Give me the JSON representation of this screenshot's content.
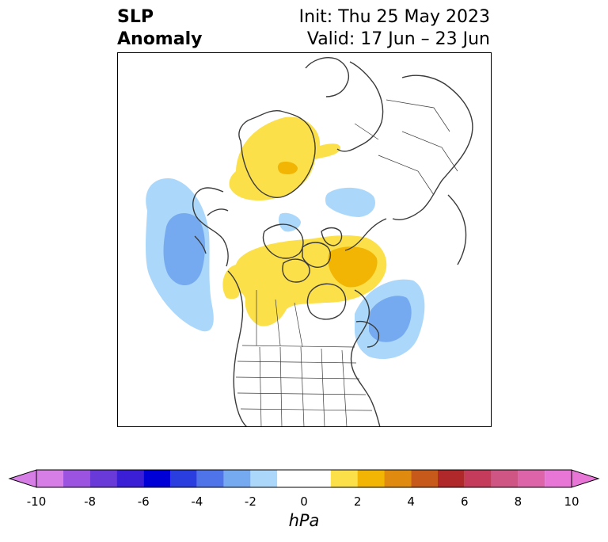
{
  "header": {
    "field_line1": "SLP",
    "field_line2": "Anomaly",
    "init_line": "Init: Thu 25 May 2023",
    "valid_line": "Valid: 17 Jun – 23 Jun"
  },
  "colorbar": {
    "units": "hPa",
    "tick_labels": [
      "-10",
      "-8",
      "-6",
      "-4",
      "-2",
      "0",
      "2",
      "4",
      "6",
      "8",
      "10"
    ],
    "levels": [
      -10,
      -9,
      -8,
      -7,
      -6,
      -5,
      -4,
      -3,
      -2,
      -1,
      1,
      2,
      3,
      4,
      5,
      6,
      7,
      8,
      9,
      10
    ],
    "colors": [
      "#d67ee6",
      "#9c53e0",
      "#6a3ad8",
      "#3b1fd6",
      "#0000d6",
      "#2a3ee0",
      "#4f73e8",
      "#76aaf0",
      "#abd8fa",
      "#ffffff",
      "#fbe04a",
      "#f2b503",
      "#e08a10",
      "#c75a1b",
      "#b0282a",
      "#c43b5b",
      "#cf5584",
      "#dd64a8",
      "#e776d6"
    ],
    "extend_low_color": "#d67ee6",
    "extend_high_color": "#e776d6"
  },
  "map": {
    "region": "North America / North Atlantic / Arctic polar view",
    "positive_color_light": "#fbe04a",
    "positive_color_strong": "#f2b503",
    "negative_color_light": "#abd8fa",
    "negative_color_strong": "#76aaf0",
    "coast_color": "#3a3a3a"
  }
}
